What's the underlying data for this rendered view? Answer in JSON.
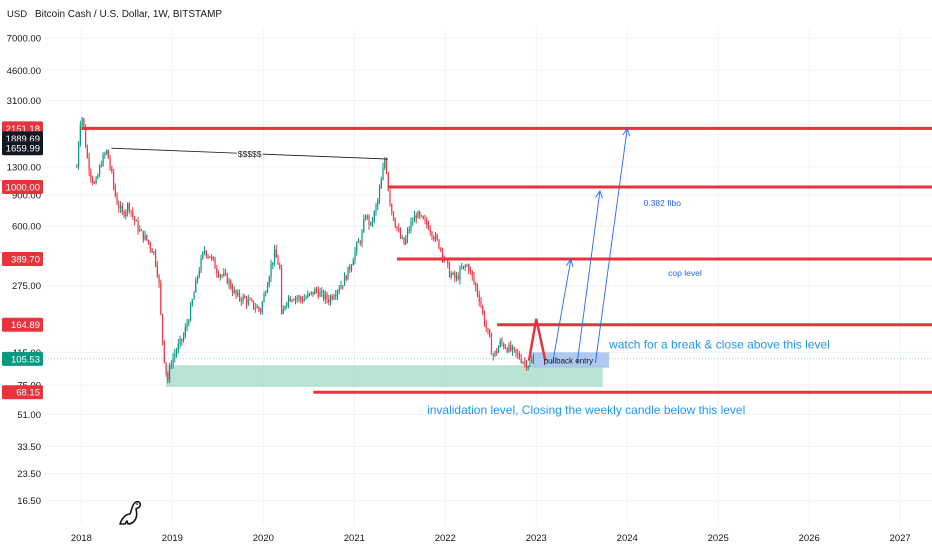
{
  "chart_data": {
    "type": "candlestick",
    "title": "Bitcoin Cash / U.S. Dollar, 1W, BITSTAMP",
    "yscale": "log",
    "ylabel": "USD",
    "ylim": [
      12,
      8000
    ],
    "xlim": [
      2017.6,
      2027.35
    ],
    "y_ticks": [
      {
        "value": 7000,
        "label": "7000.00"
      },
      {
        "value": 4600,
        "label": "4600.00"
      },
      {
        "value": 3100,
        "label": "3100.00"
      },
      {
        "value": 1300,
        "label": "1300.00"
      },
      {
        "value": 900,
        "label": "900.00"
      },
      {
        "value": 600,
        "label": "600.00"
      },
      {
        "value": 275,
        "label": "275.00"
      },
      {
        "value": 115,
        "label": "115.00"
      },
      {
        "value": 75,
        "label": "75.00"
      },
      {
        "value": 51,
        "label": "51.00"
      },
      {
        "value": 33.5,
        "label": "33.50"
      },
      {
        "value": 23.5,
        "label": "23.50"
      },
      {
        "value": 16.5,
        "label": "16.50"
      }
    ],
    "x_ticks": [
      {
        "value": 2018,
        "label": "2018"
      },
      {
        "value": 2019,
        "label": "2019"
      },
      {
        "value": 2020,
        "label": "2020"
      },
      {
        "value": 2021,
        "label": "2021"
      },
      {
        "value": 2022,
        "label": "2022"
      },
      {
        "value": 2023,
        "label": "2023"
      },
      {
        "value": 2024,
        "label": "2024"
      },
      {
        "value": 2025,
        "label": "2025"
      },
      {
        "value": 2026,
        "label": "2026"
      },
      {
        "value": 2027,
        "label": "2027"
      }
    ],
    "price_badges": [
      {
        "value": 2151.18,
        "label": "2151.18",
        "color": "#e8323c"
      },
      {
        "value": 1889.69,
        "label": "1889.69",
        "color": "#131722"
      },
      {
        "value": 1659.99,
        "label": "1659.99",
        "color": "#131722"
      },
      {
        "value": 1000,
        "label": "1000.00",
        "color": "#e8323c"
      },
      {
        "value": 389.7,
        "label": "389.70",
        "color": "#e8323c"
      },
      {
        "value": 164.89,
        "label": "164.89",
        "color": "#e8323c"
      },
      {
        "value": 105.53,
        "label": "105.53",
        "color": "#089981"
      },
      {
        "value": 68.15,
        "label": "68.15",
        "color": "#e8323c"
      }
    ],
    "price_path": [
      [
        2017.95,
        1300
      ],
      [
        2017.98,
        2200
      ],
      [
        2018.0,
        2600
      ],
      [
        2018.02,
        2300
      ],
      [
        2018.06,
        1500
      ],
      [
        2018.1,
        1200
      ],
      [
        2018.15,
        1000
      ],
      [
        2018.22,
        1400
      ],
      [
        2018.28,
        1600
      ],
      [
        2018.33,
        1200
      ],
      [
        2018.38,
        850
      ],
      [
        2018.45,
        700
      ],
      [
        2018.52,
        800
      ],
      [
        2018.58,
        650
      ],
      [
        2018.65,
        550
      ],
      [
        2018.72,
        500
      ],
      [
        2018.8,
        420
      ],
      [
        2018.85,
        300
      ],
      [
        2018.88,
        160
      ],
      [
        2018.92,
        95
      ],
      [
        2018.95,
        80
      ],
      [
        2018.98,
        100
      ],
      [
        2019.05,
        120
      ],
      [
        2019.12,
        140
      ],
      [
        2019.2,
        200
      ],
      [
        2019.28,
        320
      ],
      [
        2019.35,
        440
      ],
      [
        2019.42,
        400
      ],
      [
        2019.5,
        330
      ],
      [
        2019.6,
        300
      ],
      [
        2019.7,
        240
      ],
      [
        2019.8,
        230
      ],
      [
        2019.9,
        210
      ],
      [
        2019.97,
        200
      ],
      [
        2020.05,
        300
      ],
      [
        2020.12,
        420
      ],
      [
        2020.18,
        350
      ],
      [
        2020.2,
        180
      ],
      [
        2020.25,
        230
      ],
      [
        2020.33,
        240
      ],
      [
        2020.42,
        230
      ],
      [
        2020.5,
        240
      ],
      [
        2020.58,
        260
      ],
      [
        2020.65,
        240
      ],
      [
        2020.72,
        230
      ],
      [
        2020.8,
        260
      ],
      [
        2020.88,
        290
      ],
      [
        2020.95,
        350
      ],
      [
        2021.02,
        450
      ],
      [
        2021.08,
        520
      ],
      [
        2021.12,
        700
      ],
      [
        2021.18,
        600
      ],
      [
        2021.25,
        800
      ],
      [
        2021.3,
        1100
      ],
      [
        2021.34,
        1500
      ],
      [
        2021.38,
        900
      ],
      [
        2021.42,
        700
      ],
      [
        2021.5,
        520
      ],
      [
        2021.55,
        470
      ],
      [
        2021.6,
        580
      ],
      [
        2021.68,
        700
      ],
      [
        2021.75,
        640
      ],
      [
        2021.82,
        600
      ],
      [
        2021.88,
        520
      ],
      [
        2021.95,
        450
      ],
      [
        2022.0,
        380
      ],
      [
        2022.05,
        320
      ],
      [
        2022.12,
        300
      ],
      [
        2022.18,
        340
      ],
      [
        2022.25,
        360
      ],
      [
        2022.3,
        300
      ],
      [
        2022.38,
        230
      ],
      [
        2022.42,
        180
      ],
      [
        2022.48,
        140
      ],
      [
        2022.52,
        110
      ],
      [
        2022.56,
        115
      ],
      [
        2022.6,
        130
      ],
      [
        2022.66,
        125
      ],
      [
        2022.72,
        118
      ],
      [
        2022.78,
        112
      ],
      [
        2022.84,
        105
      ],
      [
        2022.88,
        100
      ],
      [
        2022.93,
        98
      ],
      [
        2022.97,
        105.53
      ]
    ],
    "annotations": {
      "horizontal_levels": [
        {
          "price": 2151.18,
          "x_start": 2018.0,
          "x_end": 2027.35,
          "color": "#e8323c"
        },
        {
          "price": 1000,
          "x_start": 2021.37,
          "x_end": 2027.35,
          "color": "#e8323c"
        },
        {
          "price": 389.7,
          "x_start": 2021.47,
          "x_end": 2027.35,
          "color": "#e8323c"
        },
        {
          "price": 164.89,
          "x_start": 2022.57,
          "x_end": 2027.35,
          "color": "#e8323c"
        },
        {
          "price": 68.15,
          "x_start": 2020.55,
          "x_end": 2027.35,
          "color": "#e8323c"
        }
      ],
      "trendline": {
        "label": "$$$$$",
        "from": [
          2018.33,
          1660
        ],
        "to": [
          2021.37,
          1440
        ],
        "color": "#131722"
      },
      "support_zone": {
        "x_start": 2018.93,
        "x_end": 2023.73,
        "low": 73,
        "high": 97,
        "color": "#a8dccb"
      },
      "pullback_box": {
        "label": "pullback entry",
        "x_start": 2022.95,
        "x_end": 2023.8,
        "low": 94,
        "high": 115,
        "color": "#a6c4ea"
      },
      "red_caret": {
        "left": [
          2022.92,
          103
        ],
        "top": [
          2023.0,
          178
        ],
        "right": [
          2023.1,
          103
        ],
        "color": "#e8323c"
      },
      "projection_arrows": [
        {
          "from": [
            2023.18,
            100
          ],
          "to": [
            2023.38,
            388
          ],
          "color": "#2962ff"
        },
        {
          "from": [
            2023.45,
            100
          ],
          "to": [
            2023.7,
            950
          ],
          "color": "#2962ff"
        },
        {
          "from": [
            2023.65,
            100
          ],
          "to": [
            2024.0,
            2151.18
          ],
          "color": "#2962ff"
        }
      ],
      "texts": [
        {
          "text": "0.382 fibo",
          "x": 2024.18,
          "price": 820,
          "size": 8.5,
          "color": "#2962ff"
        },
        {
          "text": "cop level",
          "x": 2024.45,
          "price": 328,
          "size": 8.5,
          "color": "#2962ff"
        },
        {
          "text": "watch for a break & close above this level",
          "x": 2023.8,
          "price": 127,
          "size": 12,
          "color": "#2196f3"
        },
        {
          "text": "invalidation level, Closing the weekly candle below this level",
          "x": 2021.8,
          "price": 54,
          "size": 12,
          "color": "#2196f3"
        }
      ]
    }
  }
}
